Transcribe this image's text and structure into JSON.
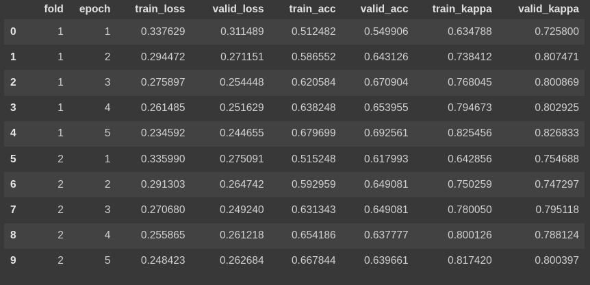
{
  "table": {
    "columns": [
      "",
      "fold",
      "epoch",
      "train_loss",
      "valid_loss",
      "train_acc",
      "valid_acc",
      "train_kappa",
      "valid_kappa"
    ],
    "rows": [
      {
        "index": "0",
        "cells": [
          "1",
          "1",
          "0.337629",
          "0.311489",
          "0.512482",
          "0.549906",
          "0.634788",
          "0.725800"
        ]
      },
      {
        "index": "1",
        "cells": [
          "1",
          "2",
          "0.294472",
          "0.271151",
          "0.586552",
          "0.643126",
          "0.738412",
          "0.807471"
        ]
      },
      {
        "index": "2",
        "cells": [
          "1",
          "3",
          "0.275897",
          "0.254448",
          "0.620584",
          "0.670904",
          "0.768045",
          "0.800869"
        ]
      },
      {
        "index": "3",
        "cells": [
          "1",
          "4",
          "0.261485",
          "0.251629",
          "0.638248",
          "0.653955",
          "0.794673",
          "0.802925"
        ]
      },
      {
        "index": "4",
        "cells": [
          "1",
          "5",
          "0.234592",
          "0.244655",
          "0.679699",
          "0.692561",
          "0.825456",
          "0.826833"
        ]
      },
      {
        "index": "5",
        "cells": [
          "2",
          "1",
          "0.335990",
          "0.275091",
          "0.515248",
          "0.617993",
          "0.642856",
          "0.754688"
        ]
      },
      {
        "index": "6",
        "cells": [
          "2",
          "2",
          "0.291303",
          "0.264742",
          "0.592959",
          "0.649081",
          "0.750259",
          "0.747297"
        ]
      },
      {
        "index": "7",
        "cells": [
          "2",
          "3",
          "0.270680",
          "0.249240",
          "0.631343",
          "0.649081",
          "0.780050",
          "0.795118"
        ]
      },
      {
        "index": "8",
        "cells": [
          "2",
          "4",
          "0.255865",
          "0.261218",
          "0.654186",
          "0.637777",
          "0.800126",
          "0.788124"
        ]
      },
      {
        "index": "9",
        "cells": [
          "2",
          "5",
          "0.248423",
          "0.262684",
          "0.667844",
          "0.639661",
          "0.817420",
          "0.800397"
        ]
      }
    ]
  },
  "colors": {
    "background": "#383838",
    "row_stripe": "#424242",
    "text": "#d0d0d0"
  }
}
